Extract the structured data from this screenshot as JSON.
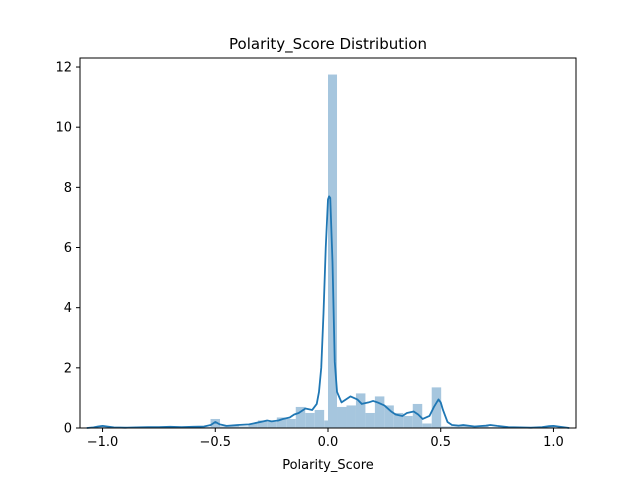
{
  "chart_data": {
    "type": "bar",
    "title": "Polarity_Score Distribution",
    "xlabel": "Polarity_Score",
    "ylabel": "",
    "xlim": [
      -1.1,
      1.1
    ],
    "ylim": [
      0,
      12.3
    ],
    "x_ticks": [
      -1.0,
      -0.5,
      0.0,
      0.5,
      1.0
    ],
    "x_tick_labels": [
      "−1.0",
      "−0.5",
      "0.0",
      "0.5",
      "1.0"
    ],
    "y_ticks": [
      0,
      2,
      4,
      6,
      8,
      10,
      12
    ],
    "y_tick_labels": [
      "0",
      "2",
      "4",
      "6",
      "8",
      "10",
      "12"
    ],
    "grid": false,
    "bar_color": "#a6c6de",
    "kde_color": "#1f77b4",
    "histogram": [
      {
        "x0": -1.025,
        "x1": -0.983,
        "value": 0.06
      },
      {
        "x0": -0.983,
        "x1": -0.941,
        "value": 0.03
      },
      {
        "x0": -0.941,
        "x1": -0.899,
        "value": 0.0
      },
      {
        "x0": -0.899,
        "x1": -0.857,
        "value": 0.02
      },
      {
        "x0": -0.857,
        "x1": -0.815,
        "value": 0.0
      },
      {
        "x0": -0.815,
        "x1": -0.773,
        "value": 0.03
      },
      {
        "x0": -0.773,
        "x1": -0.731,
        "value": 0.0
      },
      {
        "x0": -0.731,
        "x1": -0.689,
        "value": 0.05
      },
      {
        "x0": -0.689,
        "x1": -0.647,
        "value": 0.02
      },
      {
        "x0": -0.647,
        "x1": -0.605,
        "value": 0.0
      },
      {
        "x0": -0.605,
        "x1": -0.563,
        "value": 0.05
      },
      {
        "x0": -0.563,
        "x1": -0.521,
        "value": 0.03
      },
      {
        "x0": -0.521,
        "x1": -0.479,
        "value": 0.3
      },
      {
        "x0": -0.479,
        "x1": -0.437,
        "value": 0.05
      },
      {
        "x0": -0.437,
        "x1": -0.395,
        "value": 0.1
      },
      {
        "x0": -0.395,
        "x1": -0.353,
        "value": 0.05
      },
      {
        "x0": -0.353,
        "x1": -0.311,
        "value": 0.15
      },
      {
        "x0": -0.311,
        "x1": -0.269,
        "value": 0.25
      },
      {
        "x0": -0.269,
        "x1": -0.227,
        "value": 0.2
      },
      {
        "x0": -0.227,
        "x1": -0.185,
        "value": 0.35
      },
      {
        "x0": -0.185,
        "x1": -0.143,
        "value": 0.3
      },
      {
        "x0": -0.143,
        "x1": -0.101,
        "value": 0.7
      },
      {
        "x0": -0.101,
        "x1": -0.059,
        "value": 0.5
      },
      {
        "x0": -0.059,
        "x1": -0.017,
        "value": 0.6
      },
      {
        "x0": -0.017,
        "x1": 0.0,
        "value": 0.25
      },
      {
        "x0": 0.0,
        "x1": 0.04,
        "value": 11.75
      },
      {
        "x0": 0.04,
        "x1": 0.082,
        "value": 0.7
      },
      {
        "x0": 0.082,
        "x1": 0.124,
        "value": 0.75
      },
      {
        "x0": 0.124,
        "x1": 0.166,
        "value": 1.15
      },
      {
        "x0": 0.166,
        "x1": 0.208,
        "value": 0.5
      },
      {
        "x0": 0.208,
        "x1": 0.25,
        "value": 1.05
      },
      {
        "x0": 0.25,
        "x1": 0.292,
        "value": 0.75
      },
      {
        "x0": 0.292,
        "x1": 0.334,
        "value": 0.5
      },
      {
        "x0": 0.334,
        "x1": 0.376,
        "value": 0.4
      },
      {
        "x0": 0.376,
        "x1": 0.418,
        "value": 0.8
      },
      {
        "x0": 0.418,
        "x1": 0.46,
        "value": 0.15
      },
      {
        "x0": 0.46,
        "x1": 0.502,
        "value": 1.35
      },
      {
        "x0": 0.502,
        "x1": 0.544,
        "value": 0.05
      },
      {
        "x0": 0.544,
        "x1": 0.586,
        "value": 0.05
      },
      {
        "x0": 0.586,
        "x1": 0.628,
        "value": 0.1
      },
      {
        "x0": 0.628,
        "x1": 0.67,
        "value": 0.05
      },
      {
        "x0": 0.67,
        "x1": 0.712,
        "value": 0.08
      },
      {
        "x0": 0.712,
        "x1": 0.754,
        "value": 0.03
      },
      {
        "x0": 0.754,
        "x1": 0.796,
        "value": 0.05
      },
      {
        "x0": 0.796,
        "x1": 0.838,
        "value": 0.02
      },
      {
        "x0": 0.838,
        "x1": 0.88,
        "value": 0.0
      },
      {
        "x0": 0.88,
        "x1": 0.922,
        "value": 0.02
      },
      {
        "x0": 0.922,
        "x1": 0.964,
        "value": 0.0
      },
      {
        "x0": 0.964,
        "x1": 1.006,
        "value": 0.06
      }
    ],
    "kde": {
      "x": [
        -1.07,
        -1.04,
        -1.02,
        -1.0,
        -0.98,
        -0.95,
        -0.9,
        -0.85,
        -0.8,
        -0.75,
        -0.7,
        -0.65,
        -0.6,
        -0.55,
        -0.52,
        -0.5,
        -0.48,
        -0.45,
        -0.4,
        -0.35,
        -0.3,
        -0.27,
        -0.25,
        -0.22,
        -0.2,
        -0.17,
        -0.15,
        -0.13,
        -0.1,
        -0.07,
        -0.05,
        -0.04,
        -0.03,
        -0.02,
        -0.01,
        0.0,
        0.005,
        0.01,
        0.02,
        0.03,
        0.04,
        0.06,
        0.08,
        0.1,
        0.13,
        0.15,
        0.18,
        0.2,
        0.22,
        0.25,
        0.28,
        0.3,
        0.33,
        0.35,
        0.38,
        0.4,
        0.42,
        0.45,
        0.47,
        0.49,
        0.5,
        0.51,
        0.53,
        0.55,
        0.58,
        0.6,
        0.65,
        0.7,
        0.72,
        0.75,
        0.8,
        0.85,
        0.9,
        0.95,
        0.98,
        1.0,
        1.02,
        1.05,
        1.07
      ],
      "y": [
        0.0,
        0.02,
        0.05,
        0.07,
        0.05,
        0.02,
        0.01,
        0.02,
        0.03,
        0.03,
        0.04,
        0.03,
        0.04,
        0.05,
        0.1,
        0.2,
        0.12,
        0.07,
        0.1,
        0.12,
        0.2,
        0.25,
        0.22,
        0.25,
        0.3,
        0.35,
        0.45,
        0.5,
        0.65,
        0.6,
        0.8,
        1.2,
        2.0,
        3.8,
        6.0,
        7.6,
        7.7,
        7.65,
        5.5,
        2.2,
        1.2,
        0.85,
        0.95,
        1.05,
        0.95,
        0.8,
        0.85,
        0.9,
        0.85,
        0.75,
        0.55,
        0.45,
        0.4,
        0.5,
        0.55,
        0.45,
        0.3,
        0.4,
        0.7,
        0.95,
        0.85,
        0.6,
        0.2,
        0.1,
        0.08,
        0.1,
        0.05,
        0.08,
        0.1,
        0.07,
        0.03,
        0.02,
        0.01,
        0.03,
        0.06,
        0.07,
        0.05,
        0.02,
        0.0
      ]
    }
  }
}
